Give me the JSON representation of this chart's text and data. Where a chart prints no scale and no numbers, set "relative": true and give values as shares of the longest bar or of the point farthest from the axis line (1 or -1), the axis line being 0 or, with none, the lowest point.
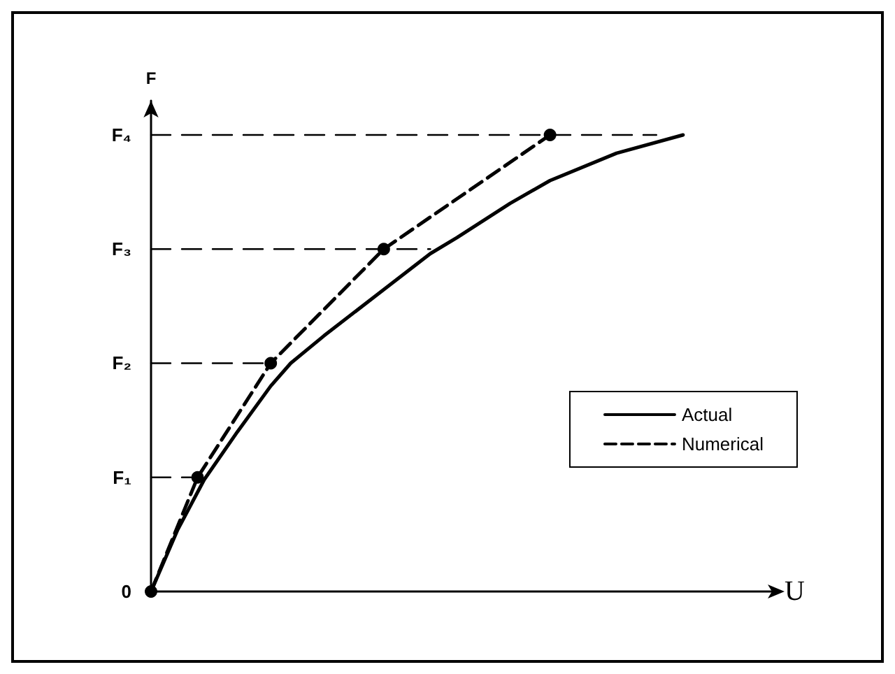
{
  "chart_data": {
    "type": "line",
    "relative": true,
    "xlabel": "U",
    "ylabel": "F",
    "categories": [
      null,
      null,
      null,
      null,
      null,
      null,
      null,
      null,
      null,
      null,
      null,
      null,
      null,
      null,
      null,
      null,
      null,
      null,
      null,
      null,
      null,
      null,
      null,
      null,
      null,
      null,
      null,
      null,
      null,
      null,
      null,
      null,
      null,
      null,
      null,
      null,
      null,
      null,
      null,
      null,
      null,
      null,
      null,
      null,
      null,
      null,
      null,
      null,
      null,
      null,
      null,
      null,
      null,
      null,
      null,
      null,
      null,
      null,
      null,
      null,
      null,
      null,
      null,
      null,
      null,
      null,
      null,
      null,
      null,
      null,
      null,
      null,
      null,
      null,
      null,
      null,
      null,
      null,
      null,
      null,
      null,
      null,
      null,
      null,
      null,
      null,
      null,
      null,
      null,
      null,
      null,
      null,
      null,
      null,
      null
    ],
    "annotations": [
      "0",
      "F₁",
      "F₂",
      "F₃",
      "F₄"
    ],
    "grid": false,
    "legend": "right",
    "series": [
      {
        "name": "Actual",
        "color": "#000000",
        "line_style": "solid",
        "marker": "none",
        "values": [
          0,
          null,
          null,
          null,
          0.135,
          null,
          null,
          null,
          0.245,
          null,
          null,
          null,
          null,
          0.35,
          null,
          null,
          null,
          null,
          0.45,
          null,
          null,
          0.5,
          null,
          null,
          null,
          null,
          0.56,
          null,
          null,
          null,
          null,
          null,
          null,
          null,
          0.65,
          null,
          null,
          null,
          null,
          null,
          null,
          null,
          0.74,
          null,
          null,
          null,
          0.775,
          null,
          null,
          null,
          null,
          null,
          null,
          null,
          0.85,
          null,
          null,
          null,
          null,
          null,
          0.9,
          null,
          null,
          null,
          null,
          null,
          null,
          null,
          null,
          null,
          0.96,
          null,
          null,
          null,
          null,
          null,
          null,
          null,
          null,
          null,
          1,
          null,
          null,
          null,
          null,
          null,
          null,
          null,
          null,
          null,
          null,
          null,
          null,
          null,
          null
        ]
      },
      {
        "name": "Numerical",
        "color": "#000000",
        "line_style": "dashed",
        "marker": "circle",
        "values": [
          0,
          null,
          null,
          null,
          null,
          null,
          null,
          0.25,
          null,
          null,
          null,
          null,
          null,
          null,
          null,
          null,
          null,
          null,
          0.5,
          null,
          null,
          null,
          null,
          null,
          null,
          null,
          null,
          null,
          null,
          null,
          null,
          null,
          null,
          null,
          null,
          0.75,
          null,
          null,
          null,
          null,
          null,
          null,
          null,
          null,
          null,
          null,
          null,
          null,
          null,
          null,
          null,
          null,
          null,
          null,
          null,
          null,
          null,
          null,
          null,
          null,
          1,
          null,
          null,
          null,
          null,
          null,
          null,
          null,
          null,
          null,
          null,
          null,
          null,
          null,
          null,
          null,
          null,
          null,
          null,
          null,
          null,
          null,
          null,
          null,
          null,
          null,
          null,
          null,
          null,
          null,
          null,
          null,
          null,
          null,
          null
        ]
      },
      {
        "color": "#000000",
        "line_style": "dashed",
        "marker": "none",
        "values": [
          0.25,
          null,
          null,
          null,
          null,
          null,
          0.25,
          null,
          null,
          null,
          null,
          null,
          null,
          null,
          null,
          null,
          null,
          null,
          null,
          null,
          null,
          null,
          null,
          null,
          null,
          null,
          null,
          null,
          null,
          null,
          null,
          null,
          null,
          null,
          null,
          null,
          null,
          null,
          null,
          null,
          null,
          null,
          null,
          null,
          null,
          null,
          null,
          null,
          null,
          null,
          null,
          null,
          null,
          null,
          null,
          null,
          null,
          null,
          null,
          null,
          null,
          null,
          null,
          null,
          null,
          null,
          null,
          null,
          null,
          null,
          null,
          null,
          null,
          null,
          null,
          null,
          null,
          null,
          null,
          null,
          null,
          null,
          null,
          null,
          null,
          null,
          null,
          null,
          null,
          null,
          null,
          null,
          null,
          null,
          null
        ]
      },
      {
        "color": "#000000",
        "line_style": "dashed",
        "marker": "none",
        "values": [
          0.5,
          null,
          null,
          null,
          null,
          null,
          null,
          null,
          null,
          null,
          null,
          null,
          null,
          null,
          null,
          null,
          null,
          0.5,
          null,
          null,
          null,
          null,
          null,
          null,
          null,
          null,
          null,
          null,
          null,
          null,
          null,
          null,
          null,
          null,
          null,
          null,
          null,
          null,
          null,
          null,
          null,
          null,
          null,
          null,
          null,
          null,
          null,
          null,
          null,
          null,
          null,
          null,
          null,
          null,
          null,
          null,
          null,
          null,
          null,
          null,
          null,
          null,
          null,
          null,
          null,
          null,
          null,
          null,
          null,
          null,
          null,
          null,
          null,
          null,
          null,
          null,
          null,
          null,
          null,
          null,
          null,
          null,
          null,
          null,
          null,
          null,
          null,
          null,
          null,
          null,
          null,
          null,
          null,
          null,
          null
        ]
      },
      {
        "color": "#000000",
        "line_style": "dashed",
        "marker": "none",
        "values": [
          0.75,
          null,
          null,
          null,
          null,
          null,
          null,
          null,
          null,
          null,
          null,
          null,
          null,
          null,
          null,
          null,
          null,
          null,
          null,
          null,
          null,
          null,
          null,
          null,
          null,
          null,
          null,
          null,
          null,
          null,
          null,
          null,
          null,
          null,
          null,
          null,
          null,
          null,
          null,
          null,
          null,
          null,
          0.75,
          null,
          null,
          null,
          null,
          null,
          null,
          null,
          null,
          null,
          null,
          null,
          null,
          null,
          null,
          null,
          null,
          null,
          null,
          null,
          null,
          null,
          null,
          null,
          null,
          null,
          null,
          null,
          null,
          null,
          null,
          null,
          null,
          null,
          null,
          null,
          null,
          null,
          null,
          null,
          null,
          null,
          null,
          null,
          null,
          null,
          null,
          null,
          null,
          null,
          null,
          null,
          null
        ]
      },
      {
        "color": "#000000",
        "line_style": "dashed",
        "marker": "none",
        "values": [
          1,
          null,
          null,
          null,
          null,
          null,
          null,
          null,
          null,
          null,
          null,
          null,
          null,
          null,
          null,
          null,
          null,
          null,
          null,
          null,
          null,
          null,
          null,
          null,
          null,
          null,
          null,
          null,
          null,
          null,
          null,
          null,
          null,
          null,
          null,
          null,
          null,
          null,
          null,
          null,
          null,
          null,
          null,
          null,
          null,
          null,
          null,
          null,
          null,
          null,
          null,
          null,
          null,
          null,
          null,
          null,
          null,
          null,
          null,
          null,
          null,
          null,
          null,
          null,
          null,
          null,
          null,
          null,
          null,
          null,
          null,
          null,
          null,
          null,
          null,
          null,
          1,
          null,
          null,
          null,
          null,
          null,
          null,
          null,
          null,
          null,
          null,
          null,
          null,
          null,
          null,
          null,
          null,
          null,
          null
        ]
      }
    ]
  }
}
